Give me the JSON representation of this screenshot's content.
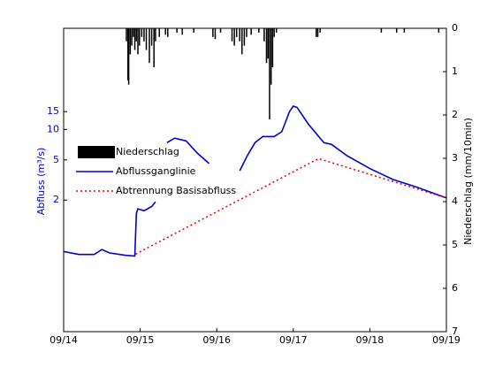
{
  "chart_data": {
    "type": "line",
    "ylabel": "Abfluss (m³/s)",
    "y2label": "Niederschlag (mm/10min)",
    "xlim": [
      0,
      5
    ],
    "xticks": [
      {
        "value": 0,
        "label": "09/14"
      },
      {
        "value": 1,
        "label": "09/15"
      },
      {
        "value": 2,
        "label": "09/16"
      },
      {
        "value": 3,
        "label": "09/17"
      },
      {
        "value": 4,
        "label": "09/18"
      },
      {
        "value": 5,
        "label": "09/19"
      }
    ],
    "ylim": [
      0.1,
      100
    ],
    "ylog": true,
    "yticks": [
      2,
      5,
      10,
      15
    ],
    "y2lim": [
      0,
      7
    ],
    "y2inverted": true,
    "y2ticks": [
      0,
      1,
      2,
      3,
      4,
      5,
      6,
      7
    ],
    "legend": "upper left",
    "series": [
      {
        "name": "Niederschlag",
        "kind": "bar",
        "axis": "y2",
        "color": "#000000",
        "x": [
          0.82,
          0.84,
          0.85,
          0.87,
          0.89,
          0.91,
          0.93,
          0.95,
          0.97,
          0.99,
          1.02,
          1.05,
          1.08,
          1.12,
          1.15,
          1.18,
          1.2,
          1.25,
          1.33,
          1.36,
          1.48,
          1.55,
          1.7,
          1.95,
          1.98,
          2.05,
          2.2,
          2.23,
          2.26,
          2.3,
          2.33,
          2.36,
          2.39,
          2.45,
          2.55,
          2.62,
          2.65,
          2.67,
          2.69,
          2.71,
          2.73,
          2.75,
          2.78,
          3.3,
          3.32,
          3.35,
          4.15,
          4.35,
          4.45,
          4.9
        ],
        "values": [
          0.3,
          1.2,
          1.3,
          0.6,
          0.4,
          0.2,
          0.5,
          0.3,
          0.6,
          0.4,
          0.2,
          0.3,
          0.5,
          0.8,
          0.4,
          0.9,
          0.3,
          0.2,
          0.15,
          0.2,
          0.1,
          0.15,
          0.1,
          0.2,
          0.25,
          0.1,
          0.3,
          0.4,
          0.2,
          0.3,
          0.6,
          0.4,
          0.2,
          0.15,
          0.1,
          0.3,
          0.8,
          0.7,
          2.1,
          1.3,
          0.9,
          0.2,
          0.1,
          0.2,
          0.2,
          0.1,
          0.1,
          0.1,
          0.1,
          0.1
        ]
      },
      {
        "name": "Abflussganglinie",
        "kind": "line",
        "color": "#0000cc",
        "x": [
          0,
          0.2,
          0.4,
          0.5,
          0.6,
          0.8,
          0.93,
          0.95,
          0.97,
          1.05,
          1.15,
          1.2,
          1.28,
          1.35,
          1.45,
          1.6,
          1.75,
          1.9,
          2.1,
          2.3,
          2.4,
          2.5,
          2.6,
          2.75,
          2.85,
          2.95,
          3.0,
          3.05,
          3.2,
          3.4,
          3.5,
          3.7,
          4.0,
          4.3,
          4.6,
          5.0
        ],
        "values": [
          0.62,
          0.58,
          0.58,
          0.65,
          0.6,
          0.57,
          0.56,
          1.48,
          1.64,
          1.57,
          1.73,
          1.92,
          null,
          7.4,
          8.2,
          7.7,
          5.8,
          4.6,
          null,
          3.9,
          5.5,
          7.4,
          8.5,
          8.5,
          9.5,
          15,
          17,
          16.5,
          11.2,
          7.4,
          7.1,
          5.5,
          4.1,
          3.2,
          2.7,
          2.1
        ]
      },
      {
        "name": "Abtrennung Basisabfluss",
        "kind": "dotted",
        "color": "#dd0000",
        "x": [
          0.94,
          3.33,
          5.0
        ],
        "values": [
          0.585,
          5.15,
          2.1
        ]
      }
    ]
  }
}
